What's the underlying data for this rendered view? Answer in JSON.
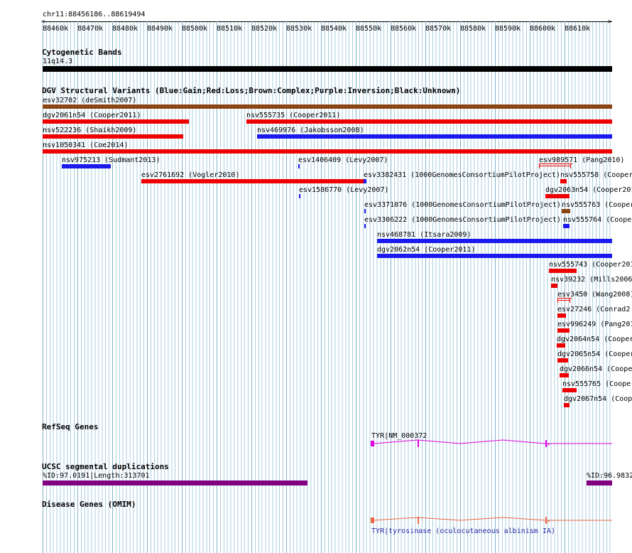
{
  "header": {
    "region": "chr11:88456186..88619494",
    "ticks": [
      "88460k",
      "88470k",
      "88480k",
      "88490k",
      "88500k",
      "88510k",
      "88520k",
      "88530k",
      "88540k",
      "88550k",
      "88560k",
      "88570k",
      "88580k",
      "88590k",
      "88600k",
      "88610k"
    ]
  },
  "tracks": {
    "cytoband": {
      "title": "Cytogenetic Bands",
      "band": "11q14.3"
    },
    "dgv": {
      "title": "DGV Structural Variants (Blue:Gain;Red:Loss;Brown:Complex;Purple:Inversion;Black:Unknown)",
      "variants": [
        {
          "label": "esv32702 (deSmith2007)",
          "color": "#8b4513"
        },
        {
          "label": "dgv2061n54 (Cooper2011)",
          "color": "#ee0000"
        },
        {
          "label": "nsv555735 (Cooper2011)",
          "color": "#ee0000"
        },
        {
          "label": "nsv522236 (Shaikh2009)",
          "color": "#ee0000"
        },
        {
          "label": "nsv469976 (Jakobsson2008)",
          "color": "#1a1aee"
        },
        {
          "label": "nsv1050341 (Coe2014)",
          "color": "#ee0000"
        },
        {
          "label": "nsv975213 (Sudmant2013)",
          "color": "#1a1aee"
        },
        {
          "label": "esv1406409 (Levy2007)",
          "color": "#1a1aee"
        },
        {
          "label": "esv989571 (Pang2010)",
          "color": "#ee0000"
        },
        {
          "label": "esv2761692 (Vogler2010)",
          "color": "#ee0000"
        },
        {
          "label": "esv3382431 (1000GenomesConsortiumPilotProject)",
          "color": "#1a1aee"
        },
        {
          "label": "nsv555758 (Cooper",
          "color": "#ee0000"
        },
        {
          "label": "esv1586770 (Levy2007)",
          "color": "#1a1aee"
        },
        {
          "label": "dgv2063n54 (Cooper201",
          "color": "#ee0000"
        },
        {
          "label": "esv3371076 (1000GenomesConsortiumPilotProject)",
          "color": "#1a1aee"
        },
        {
          "label": "nsv555763 (Cooper",
          "color": "#8b4513"
        },
        {
          "label": "esv3306222 (1000GenomesConsortiumPilotProject)",
          "color": "#1a1aee"
        },
        {
          "label": "nsv555764 (Cooper",
          "color": "#1a1aee"
        },
        {
          "label": "nsv468781 (Itsara2009)",
          "color": "#1a1aee"
        },
        {
          "label": "dgv2062n54 (Cooper2011)",
          "color": "#1a1aee"
        },
        {
          "label": "nsv555743 (Cooper201",
          "color": "#ee0000"
        },
        {
          "label": "nsv39232 (Mills2006",
          "color": "#ee0000"
        },
        {
          "label": "esv3450 (Wang2008)",
          "color": "#ee0000"
        },
        {
          "label": "esv27246 (Conrad2",
          "color": "#ee0000"
        },
        {
          "label": "esv996249 (Pang201",
          "color": "#ee0000"
        },
        {
          "label": "dgv2064n54 (Cooper",
          "color": "#ee0000"
        },
        {
          "label": "dgv2065n54 (Cooper",
          "color": "#ee0000"
        },
        {
          "label": "dgv2066n54 (Cooper",
          "color": "#ee0000"
        },
        {
          "label": "nsv555765 (Cooper",
          "color": "#ee0000"
        },
        {
          "label": "dgv2067n54 (Coop",
          "color": "#ee0000"
        }
      ]
    },
    "refseq": {
      "title": "RefSeq Genes",
      "gene": "TYR|NM_000372",
      "color": "#dd00dd"
    },
    "segdup": {
      "title": "UCSC segmental duplications",
      "left": "%ID:97.0191|Length:313701",
      "right": "%ID:96.9832",
      "color": "#800080"
    },
    "omim": {
      "title": "Disease Genes (OMIM)",
      "gene": "TYR|tyrosinase (oculocutaneous albinism IA)",
      "color": "#ee6644",
      "labelColor": "#2a2aa8"
    }
  }
}
